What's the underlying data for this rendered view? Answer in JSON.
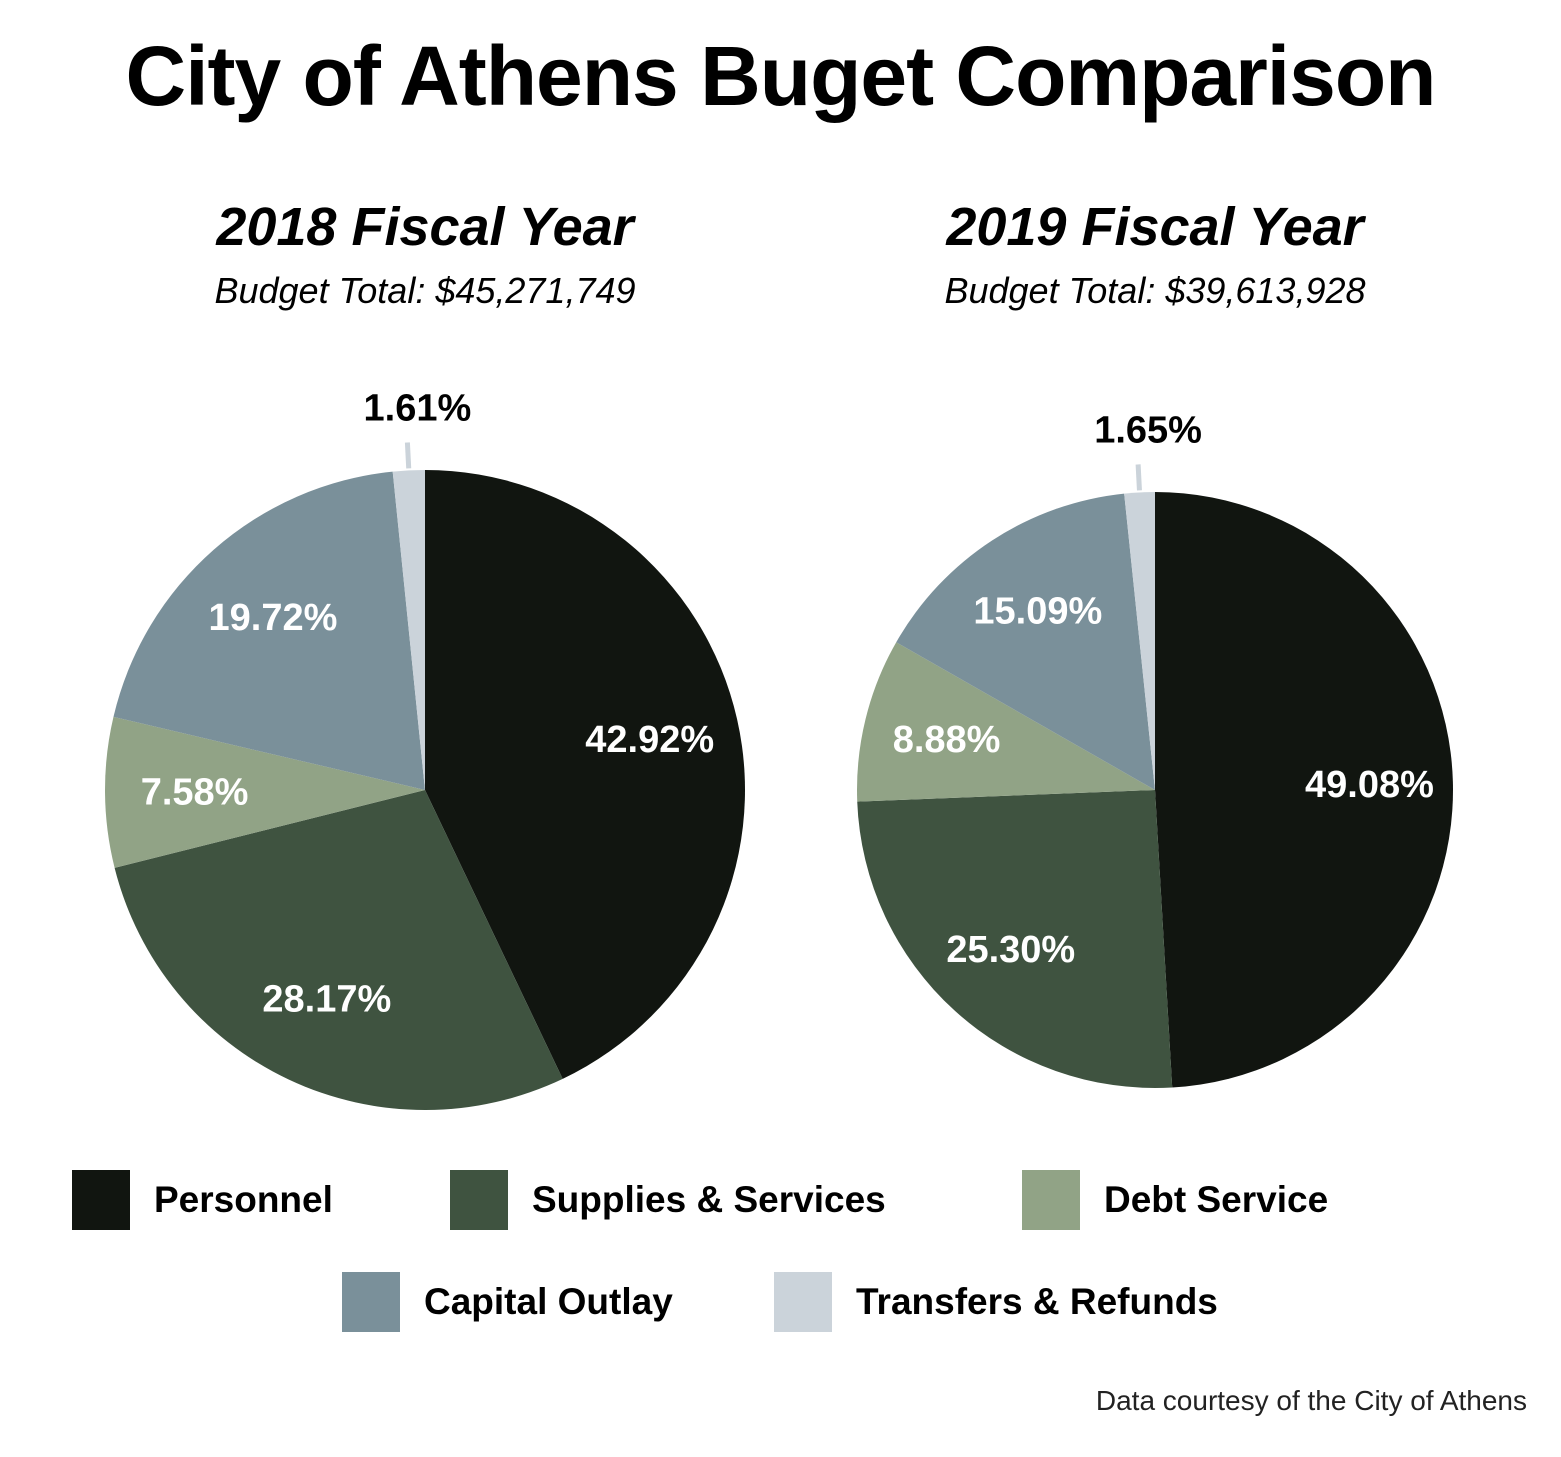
{
  "title": "City of Athens Buget Comparison",
  "credit": "Data courtesy of the City of Athens",
  "chart_data": [
    {
      "type": "pie",
      "title": "2018 Fiscal Year",
      "subtitle": "Budget Total: $45,271,749",
      "categories": [
        "Personnel",
        "Supplies & Services",
        "Debt Service",
        "Capital Outlay",
        "Transfers & Refunds"
      ],
      "values": [
        42.92,
        28.17,
        7.58,
        19.72,
        1.61
      ],
      "labels": [
        "42.92%",
        "28.17%",
        "7.58%",
        "19.72%",
        "1.61%"
      ]
    },
    {
      "type": "pie",
      "title": "2019 Fiscal Year",
      "subtitle": "Budget Total: $39,613,928",
      "categories": [
        "Personnel",
        "Supplies & Services",
        "Debt Service",
        "Capital Outlay",
        "Transfers & Refunds"
      ],
      "values": [
        49.08,
        25.3,
        8.88,
        15.09,
        1.65
      ],
      "labels": [
        "49.08%",
        "25.30%",
        "8.88%",
        "15.09%",
        "1.65%"
      ]
    }
  ],
  "legend": [
    {
      "label": "Personnel",
      "color": "#111510"
    },
    {
      "label": "Supplies & Services",
      "color": "#3f5340"
    },
    {
      "label": "Debt Service",
      "color": "#91a386"
    },
    {
      "label": "Capital Outlay",
      "color": "#7a909a"
    },
    {
      "label": "Transfers & Refunds",
      "color": "#cbd3da"
    }
  ]
}
